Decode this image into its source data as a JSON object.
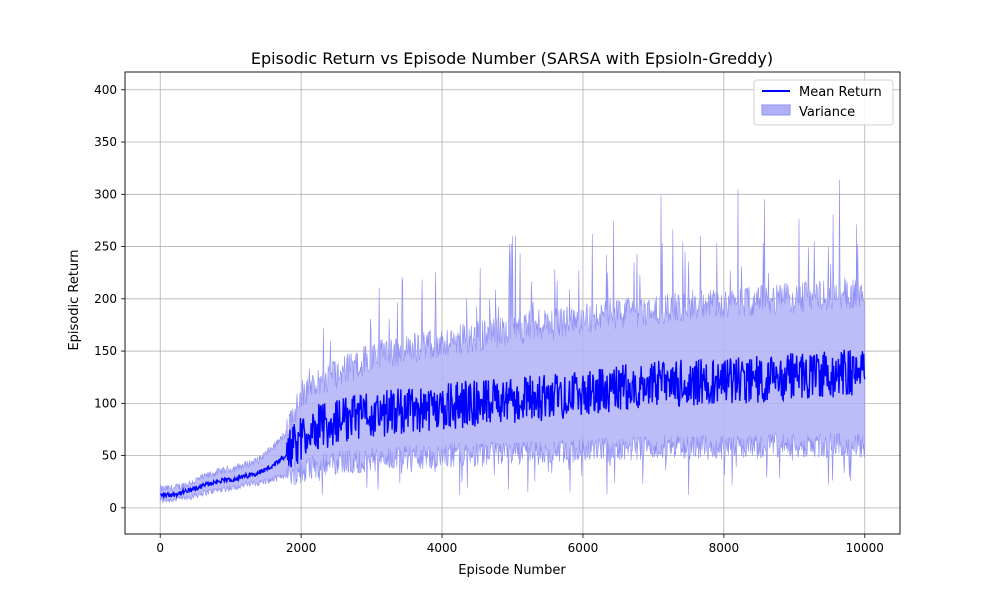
{
  "chart_data": {
    "type": "line",
    "title": "Episodic Return vs Episode Number (SARSA with Epsioln-Greddy)",
    "xlabel": "Episode Number",
    "ylabel": "Episodic Return",
    "xlim": [
      -500,
      10500
    ],
    "ylim": [
      -25,
      417
    ],
    "xticks": [
      0,
      2000,
      4000,
      6000,
      8000,
      10000
    ],
    "yticks": [
      0,
      50,
      100,
      150,
      200,
      250,
      300,
      350,
      400
    ],
    "grid": true,
    "legend_position": "top-right",
    "legend": {
      "mean_label": "Mean Return",
      "variance_label": "Variance"
    },
    "colors": {
      "mean": "#0000ff",
      "variance_fill": "#b0b0f7",
      "variance_edge": "#8f8ff5"
    },
    "episodes": [
      0,
      10000
    ],
    "series": [
      {
        "name": "Mean Return",
        "x": [
          0,
          200,
          400,
          600,
          800,
          1000,
          1200,
          1400,
          1600,
          1800,
          2000,
          2200,
          2400,
          2600,
          2800,
          3000,
          3500,
          4000,
          4500,
          5000,
          5500,
          6000,
          6500,
          7000,
          7500,
          8000,
          8500,
          9000,
          9500,
          10000
        ],
        "y": [
          12,
          13,
          16,
          21,
          25,
          27,
          30,
          34,
          40,
          50,
          68,
          76,
          80,
          84,
          87,
          89,
          93,
          97,
          100,
          103,
          106,
          110,
          114,
          118,
          120,
          121,
          123,
          126,
          128,
          130
        ]
      },
      {
        "name": "Variance",
        "x": [
          0,
          200,
          400,
          600,
          800,
          1000,
          1200,
          1400,
          1600,
          1800,
          2000,
          2200,
          2400,
          2600,
          2800,
          3000,
          3500,
          4000,
          4500,
          5000,
          5500,
          6000,
          6500,
          7000,
          7500,
          8000,
          8500,
          9000,
          9500,
          10000
        ],
        "lower": [
          7,
          8,
          10,
          14,
          17,
          19,
          22,
          24,
          27,
          32,
          35,
          40,
          42,
          44,
          45,
          46,
          48,
          50,
          51,
          52,
          53,
          55,
          56,
          58,
          58,
          58,
          59,
          60,
          60,
          60
        ],
        "upper": [
          18,
          19,
          23,
          29,
          34,
          37,
          41,
          46,
          58,
          72,
          110,
          120,
          126,
          132,
          138,
          144,
          152,
          158,
          164,
          170,
          175,
          180,
          185,
          190,
          193,
          196,
          198,
          201,
          203,
          206
        ]
      }
    ]
  }
}
